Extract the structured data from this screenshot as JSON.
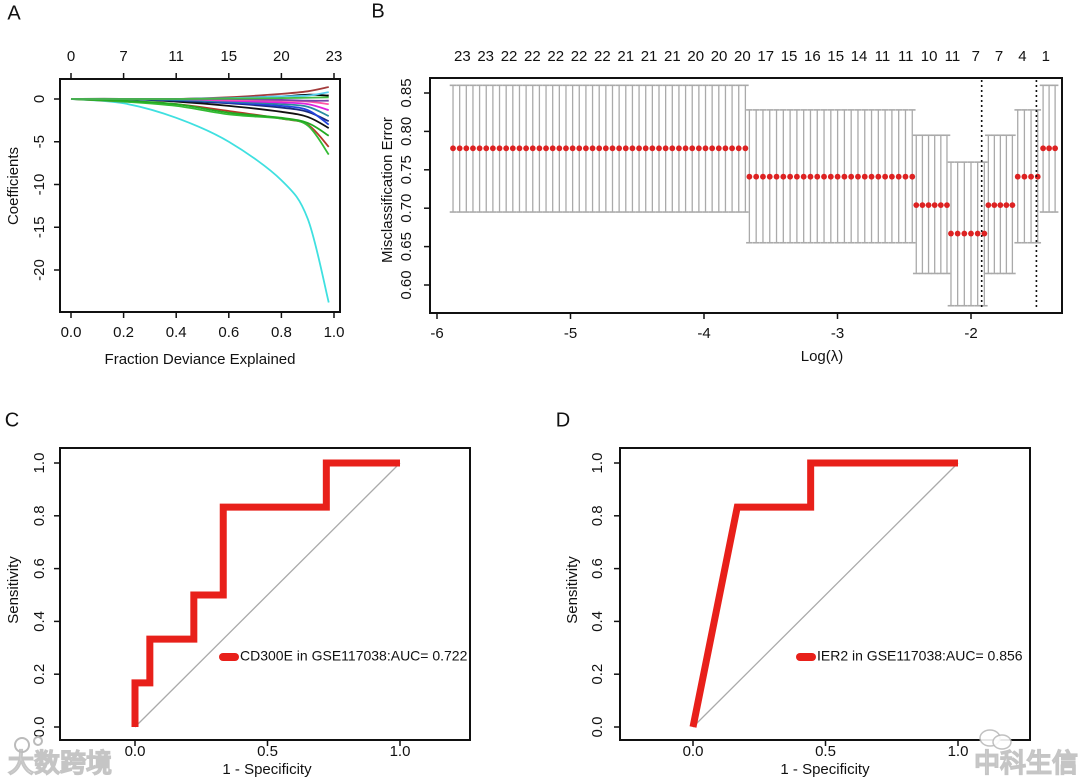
{
  "panels": {
    "a": "A",
    "b": "B",
    "c": "C",
    "d": "D"
  },
  "watermarks": {
    "left": "大数跨境",
    "right": "中科生信"
  },
  "chart_data": [
    {
      "id": "A",
      "type": "line",
      "xlabel": "Fraction Deviance Explained",
      "ylabel": "Coefficients",
      "xlim": [
        0,
        1.0
      ],
      "ylim": [
        -24,
        1.5
      ],
      "xticks": [
        0.0,
        0.2,
        0.4,
        0.6,
        0.8,
        1.0
      ],
      "xtick_labels": [
        "0.0",
        "0.2",
        "0.4",
        "0.6",
        "0.8",
        "1.0"
      ],
      "yticks": [
        0,
        -5,
        -10,
        -15,
        -20
      ],
      "ytick_labels": [
        "0",
        "-5",
        "-10",
        "-15",
        "-20"
      ],
      "top_ticks": [
        0.0,
        0.2,
        0.4,
        0.6,
        0.8,
        1.0
      ],
      "top_labels": [
        "0",
        "7",
        "11",
        "15",
        "20",
        "23"
      ],
      "x": [
        0,
        0.2,
        0.4,
        0.6,
        0.8,
        0.9,
        0.98
      ],
      "series": [
        {
          "color": "#3fe0e0",
          "values": [
            0,
            -0.5,
            -2.2,
            -5,
            -9.5,
            -14,
            -23.8
          ]
        },
        {
          "color": "#b5382a",
          "values": [
            0,
            -0.3,
            -0.6,
            -1.4,
            -2.3,
            -3,
            -5.6
          ]
        },
        {
          "color": "#33bb33",
          "values": [
            0,
            -0.3,
            -0.8,
            -1.8,
            -2.3,
            -3.1,
            -6.5
          ]
        },
        {
          "color": "#22aa22",
          "values": [
            0,
            -0.2,
            -0.6,
            -1.6,
            -2.2,
            -2.8,
            -4.3
          ]
        },
        {
          "color": "#111111",
          "values": [
            0,
            0,
            -0.3,
            -0.8,
            -1.5,
            -2.1,
            -3.4
          ]
        },
        {
          "color": "#1a2a80",
          "values": [
            0,
            0,
            -0.2,
            -0.5,
            -1.0,
            -1.5,
            -2.6
          ]
        },
        {
          "color": "#2244dd",
          "values": [
            0,
            0,
            -0.1,
            -0.4,
            -0.8,
            -1.3,
            -3.0
          ]
        },
        {
          "color": "#2a8aa0",
          "values": [
            0,
            0,
            -0.1,
            -0.3,
            -0.6,
            -0.9,
            -2.0
          ]
        },
        {
          "color": "#dd22dd",
          "values": [
            0,
            0,
            0,
            -0.2,
            -0.4,
            -0.6,
            -1.3
          ]
        },
        {
          "color": "#ff55aa",
          "values": [
            0,
            0,
            0,
            -0.1,
            -0.2,
            -0.3,
            -0.6
          ]
        },
        {
          "color": "#a33a3a",
          "values": [
            0,
            0,
            0,
            0.2,
            0.6,
            0.9,
            1.4
          ]
        },
        {
          "color": "#000000",
          "values": [
            0,
            0,
            0,
            0.1,
            0.3,
            0.5,
            0.4
          ]
        },
        {
          "color": "#55ccee",
          "values": [
            0,
            0,
            0,
            0.1,
            0.3,
            0.4,
            0.8
          ]
        },
        {
          "color": "#7744aa",
          "values": [
            0,
            0,
            0,
            0,
            -0.1,
            -0.2,
            -0.2
          ]
        },
        {
          "color": "#44bb44",
          "values": [
            0,
            0,
            0,
            0.05,
            0.1,
            0.15,
            0.2
          ]
        }
      ]
    },
    {
      "id": "B",
      "type": "scatter",
      "xlabel": "Log(λ)",
      "ylabel": "Misclassification Error",
      "xlim": [
        -6.05,
        -1.3
      ],
      "ylim": [
        0.565,
        0.87
      ],
      "xticks": [
        -6,
        -5,
        -4,
        -3,
        -2
      ],
      "xtick_labels": [
        "-6",
        "-5",
        "-4",
        "-3",
        "-2"
      ],
      "yticks": [
        0.6,
        0.65,
        0.7,
        0.75,
        0.8,
        0.85
      ],
      "ytick_labels": [
        "0.60",
        "0.65",
        "0.70",
        "0.75",
        "0.80",
        "0.85"
      ],
      "top_labels": [
        "23",
        "23",
        "22",
        "22",
        "22",
        "22",
        "22",
        "21",
        "21",
        "21",
        "20",
        "20",
        "20",
        "17",
        "15",
        "16",
        "15",
        "14",
        "11",
        "11",
        "10",
        "11",
        "7",
        "7",
        "4",
        "1"
      ],
      "top_label_range": [
        -5.81,
        -1.44
      ],
      "point_color": "#dd2222",
      "errorbar_color": "#aaaaaa",
      "groups": [
        {
          "from": -5.88,
          "to": -3.69,
          "n": 45,
          "mean": 0.778,
          "lo": 0.695,
          "hi": 0.86
        },
        {
          "from": -3.66,
          "to": -2.44,
          "n": 25,
          "mean": 0.741,
          "lo": 0.655,
          "hi": 0.828
        },
        {
          "from": -2.41,
          "to": -2.18,
          "n": 6,
          "mean": 0.704,
          "lo": 0.615,
          "hi": 0.795
        },
        {
          "from": -2.15,
          "to": -1.9,
          "n": 6,
          "mean": 0.667,
          "lo": 0.573,
          "hi": 0.76
        },
        {
          "from": -1.87,
          "to": -1.69,
          "n": 5,
          "mean": 0.704,
          "lo": 0.615,
          "hi": 0.795
        },
        {
          "from": -1.65,
          "to": -1.5,
          "n": 4,
          "mean": 0.741,
          "lo": 0.655,
          "hi": 0.828
        },
        {
          "from": -1.46,
          "to": -1.37,
          "n": 3,
          "mean": 0.778,
          "lo": 0.695,
          "hi": 0.86
        }
      ],
      "vlines": [
        -1.92,
        -1.51
      ]
    },
    {
      "id": "C",
      "type": "line",
      "xlabel": "1 - Specificity",
      "ylabel": "Sensitivity",
      "xlim": [
        0,
        1
      ],
      "ylim": [
        0,
        1
      ],
      "xticks": [
        0,
        0.5,
        1.0
      ],
      "xtick_labels": [
        "0.0",
        "0.5",
        "1.0"
      ],
      "yticks": [
        0,
        0.2,
        0.4,
        0.6,
        0.8,
        1.0
      ],
      "ytick_labels": [
        "0.0",
        "0.2",
        "0.4",
        "0.6",
        "0.8",
        "1.0"
      ],
      "color": "#e8201a",
      "x": [
        0,
        0,
        0.056,
        0.056,
        0.222,
        0.222,
        0.333,
        0.333,
        0.722,
        0.722,
        1.0
      ],
      "y": [
        0,
        0.167,
        0.167,
        0.333,
        0.333,
        0.5,
        0.5,
        0.833,
        0.833,
        1.0,
        1.0
      ],
      "legend": "CD300E  in GSE117038:AUC= 0.722",
      "auc": 0.722
    },
    {
      "id": "D",
      "type": "line",
      "xlabel": "1 - Specificity",
      "ylabel": "Sensitivity",
      "xlim": [
        0,
        1
      ],
      "ylim": [
        0,
        1
      ],
      "xticks": [
        0,
        0.5,
        1.0
      ],
      "xtick_labels": [
        "0.0",
        "0.5",
        "1.0"
      ],
      "yticks": [
        0,
        0.2,
        0.4,
        0.6,
        0.8,
        1.0
      ],
      "ytick_labels": [
        "0.0",
        "0.2",
        "0.4",
        "0.6",
        "0.8",
        "1.0"
      ],
      "color": "#e8201a",
      "x": [
        0,
        0.167,
        0.444,
        0.444,
        1.0
      ],
      "y": [
        0,
        0.833,
        0.833,
        1.0,
        1.0
      ],
      "legend": "IER2  in GSE117038:AUC= 0.856",
      "auc": 0.856
    }
  ]
}
